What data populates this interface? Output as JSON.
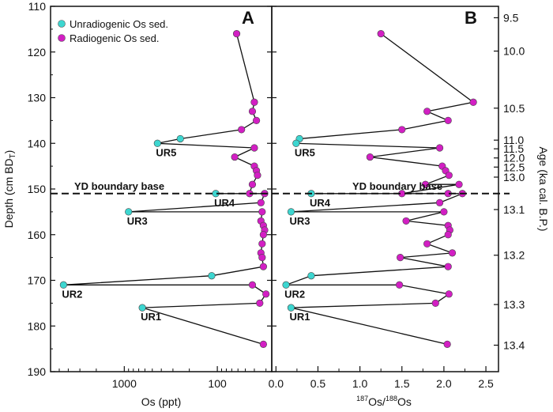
{
  "chart_data": {
    "type": "scatter",
    "y_axis": {
      "label": "Depth (cm BDT)",
      "label_main": "Depth (cm BD",
      "label_sub": "T",
      "label_close": ")",
      "range": [
        110,
        190
      ],
      "ticks": [
        "110",
        "120",
        "130",
        "140",
        "150",
        "160",
        "170",
        "180",
        "190"
      ],
      "inverted": true
    },
    "age_axis": {
      "label": "Age (ka cal. B.P.)",
      "ticks": [
        {
          "label": "9.5",
          "depth": 112.5
        },
        {
          "label": "10.0",
          "depth": 119.8
        },
        {
          "label": "10.5",
          "depth": 132.3
        },
        {
          "label": "11.0",
          "depth": 139.3
        },
        {
          "label": "11.5",
          "depth": 141.2
        },
        {
          "label": "12.0",
          "depth": 143.2
        },
        {
          "label": "12.5",
          "depth": 145.2
        },
        {
          "label": "13.0",
          "depth": 147.4
        },
        {
          "label": "13.1",
          "depth": 154.5
        },
        {
          "label": "13.2",
          "depth": 164.5
        },
        {
          "label": "13.3",
          "depth": 175.3
        },
        {
          "label": "13.4",
          "depth": 184.2
        }
      ]
    },
    "boundary": {
      "label": "YD boundary base",
      "depth": 151
    },
    "legend": [
      {
        "name": "Unradiogenic Os sed.",
        "color": "#3dd6d0"
      },
      {
        "name": "Radiogenic Os sed.",
        "color": "#d21fc3"
      }
    ],
    "colors": {
      "unradiogenic": "#3dd6d0",
      "radiogenic": "#d21fc3",
      "line": "#111111"
    },
    "panels": [
      {
        "id": "A",
        "xlabel": "Os (ppt)",
        "x_scale": "log-reversed",
        "xlim": [
          6200,
          26
        ],
        "xticks": [
          {
            "label": "1000",
            "value": 1000
          },
          {
            "label": "100",
            "value": 100
          }
        ],
        "points": [
          {
            "depth": 116,
            "x": 62,
            "type": "radiogenic"
          },
          {
            "depth": 131,
            "x": 40,
            "type": "radiogenic"
          },
          {
            "depth": 133,
            "x": 42,
            "type": "radiogenic"
          },
          {
            "depth": 135,
            "x": 38,
            "type": "radiogenic"
          },
          {
            "depth": 137,
            "x": 55,
            "type": "radiogenic"
          },
          {
            "depth": 139,
            "x": 250,
            "type": "unradiogenic"
          },
          {
            "depth": 140,
            "x": 440,
            "type": "unradiogenic"
          },
          {
            "depth": 141,
            "x": 40,
            "type": "radiogenic"
          },
          {
            "depth": 143,
            "x": 65,
            "type": "radiogenic"
          },
          {
            "depth": 145,
            "x": 40,
            "type": "radiogenic"
          },
          {
            "depth": 146,
            "x": 38,
            "type": "radiogenic"
          },
          {
            "depth": 147,
            "x": 37,
            "type": "radiogenic"
          },
          {
            "depth": 149,
            "x": 42,
            "type": "radiogenic"
          },
          {
            "depth": 151,
            "x": 45,
            "type": "radiogenic"
          },
          {
            "depth": 151,
            "x": 104,
            "type": "unradiogenic"
          },
          {
            "depth": 151,
            "x": 31,
            "type": "radiogenic"
          },
          {
            "depth": 153,
            "x": 34,
            "type": "radiogenic"
          },
          {
            "depth": 155,
            "x": 900,
            "type": "unradiogenic"
          },
          {
            "depth": 155,
            "x": 33,
            "type": "radiogenic"
          },
          {
            "depth": 157,
            "x": 34,
            "type": "radiogenic"
          },
          {
            "depth": 158,
            "x": 32,
            "type": "radiogenic"
          },
          {
            "depth": 159,
            "x": 31,
            "type": "radiogenic"
          },
          {
            "depth": 160,
            "x": 32,
            "type": "radiogenic"
          },
          {
            "depth": 162,
            "x": 33,
            "type": "radiogenic"
          },
          {
            "depth": 164,
            "x": 34,
            "type": "radiogenic"
          },
          {
            "depth": 165,
            "x": 33,
            "type": "radiogenic"
          },
          {
            "depth": 167,
            "x": 32,
            "type": "radiogenic"
          },
          {
            "depth": 169,
            "x": 115,
            "type": "unradiogenic"
          },
          {
            "depth": 171,
            "x": 4500,
            "type": "unradiogenic"
          },
          {
            "depth": 171,
            "x": 42,
            "type": "radiogenic"
          },
          {
            "depth": 173,
            "x": 30,
            "type": "radiogenic"
          },
          {
            "depth": 175,
            "x": 35,
            "type": "radiogenic"
          },
          {
            "depth": 176,
            "x": 640,
            "type": "unradiogenic"
          },
          {
            "depth": 184,
            "x": 32,
            "type": "radiogenic"
          }
        ],
        "labels": [
          {
            "text": "UR5",
            "depth": 140,
            "x": 440
          },
          {
            "text": "UR4",
            "depth": 151,
            "x": 104
          },
          {
            "text": "UR3",
            "depth": 155,
            "x": 900
          },
          {
            "text": "UR2",
            "depth": 171,
            "x": 4500
          },
          {
            "text": "UR1",
            "depth": 176,
            "x": 640
          }
        ]
      },
      {
        "id": "B",
        "xlabel": "187Os/188Os",
        "xlabel_parts": [
          "187",
          "Os/",
          "188",
          "Os"
        ],
        "x_scale": "linear",
        "xlim": [
          -0.05,
          2.65
        ],
        "xticks": [
          {
            "label": "0.0",
            "value": 0.0
          },
          {
            "label": "0.5",
            "value": 0.5
          },
          {
            "label": "1.0",
            "value": 1.0
          },
          {
            "label": "1.5",
            "value": 1.5
          },
          {
            "label": "2.0",
            "value": 2.0
          },
          {
            "label": "2.5",
            "value": 2.5
          }
        ],
        "points": [
          {
            "depth": 116,
            "x": 1.25,
            "type": "radiogenic"
          },
          {
            "depth": 131,
            "x": 2.35,
            "type": "radiogenic"
          },
          {
            "depth": 133,
            "x": 1.8,
            "type": "radiogenic"
          },
          {
            "depth": 135,
            "x": 2.05,
            "type": "radiogenic"
          },
          {
            "depth": 137,
            "x": 1.5,
            "type": "radiogenic"
          },
          {
            "depth": 139,
            "x": 0.28,
            "type": "unradiogenic"
          },
          {
            "depth": 140,
            "x": 0.24,
            "type": "unradiogenic"
          },
          {
            "depth": 141,
            "x": 1.95,
            "type": "radiogenic"
          },
          {
            "depth": 143,
            "x": 1.12,
            "type": "radiogenic"
          },
          {
            "depth": 145,
            "x": 1.98,
            "type": "radiogenic"
          },
          {
            "depth": 146,
            "x": 2.02,
            "type": "radiogenic"
          },
          {
            "depth": 147,
            "x": 2.06,
            "type": "radiogenic"
          },
          {
            "depth": 149,
            "x": 1.78,
            "type": "radiogenic"
          },
          {
            "depth": 149,
            "x": 2.18,
            "type": "radiogenic"
          },
          {
            "depth": 151,
            "x": 1.5,
            "type": "radiogenic"
          },
          {
            "depth": 151,
            "x": 0.42,
            "type": "unradiogenic"
          },
          {
            "depth": 151,
            "x": 2.05,
            "type": "radiogenic"
          },
          {
            "depth": 151,
            "x": 2.22,
            "type": "radiogenic"
          },
          {
            "depth": 153,
            "x": 1.95,
            "type": "radiogenic"
          },
          {
            "depth": 155,
            "x": 0.18,
            "type": "unradiogenic"
          },
          {
            "depth": 155,
            "x": 2.0,
            "type": "radiogenic"
          },
          {
            "depth": 157,
            "x": 1.55,
            "type": "radiogenic"
          },
          {
            "depth": 158,
            "x": 2.05,
            "type": "radiogenic"
          },
          {
            "depth": 159,
            "x": 2.07,
            "type": "radiogenic"
          },
          {
            "depth": 160,
            "x": 2.05,
            "type": "radiogenic"
          },
          {
            "depth": 162,
            "x": 1.8,
            "type": "radiogenic"
          },
          {
            "depth": 164,
            "x": 2.1,
            "type": "radiogenic"
          },
          {
            "depth": 165,
            "x": 1.48,
            "type": "radiogenic"
          },
          {
            "depth": 167,
            "x": 2.05,
            "type": "radiogenic"
          },
          {
            "depth": 169,
            "x": 0.42,
            "type": "unradiogenic"
          },
          {
            "depth": 171,
            "x": 0.12,
            "type": "unradiogenic"
          },
          {
            "depth": 171,
            "x": 1.47,
            "type": "radiogenic"
          },
          {
            "depth": 173,
            "x": 2.06,
            "type": "radiogenic"
          },
          {
            "depth": 175,
            "x": 1.9,
            "type": "radiogenic"
          },
          {
            "depth": 176,
            "x": 0.18,
            "type": "unradiogenic"
          },
          {
            "depth": 184,
            "x": 2.04,
            "type": "radiogenic"
          }
        ],
        "labels": [
          {
            "text": "UR5",
            "depth": 140,
            "x": 0.24
          },
          {
            "text": "UR4",
            "depth": 151,
            "x": 0.42
          },
          {
            "text": "UR3",
            "depth": 155,
            "x": 0.18
          },
          {
            "text": "UR2",
            "depth": 171,
            "x": 0.12
          },
          {
            "text": "UR1",
            "depth": 176,
            "x": 0.18
          }
        ]
      }
    ]
  }
}
